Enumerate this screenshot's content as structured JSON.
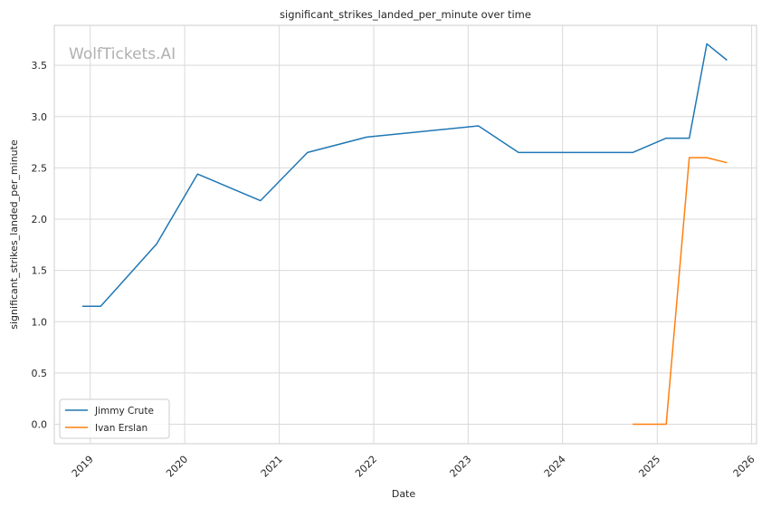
{
  "chart_data": {
    "type": "line",
    "title": "significant_strikes_landed_per_minute over time",
    "xlabel": "Date",
    "ylabel": "significant_strikes_landed_per_minute",
    "watermark": "WolfTickets.AI",
    "xlim": [
      "2018-08-15",
      "2026-01-20"
    ],
    "ylim": [
      -0.19,
      3.89
    ],
    "x_ticks": [
      "2019",
      "2020",
      "2021",
      "2022",
      "2023",
      "2024",
      "2025",
      "2026"
    ],
    "y_ticks": [
      0.0,
      0.5,
      1.0,
      1.5,
      2.0,
      2.5,
      3.0,
      3.5
    ],
    "y_tick_labels": [
      "0.0",
      "0.5",
      "1.0",
      "1.5",
      "2.0",
      "2.5",
      "3.0",
      "3.5"
    ],
    "grid": true,
    "legend_position": "bottom-left",
    "series": [
      {
        "name": "Jimmy Crute",
        "color": "#1f77b4",
        "points": [
          {
            "x": "2018-12-01",
            "y": 1.15
          },
          {
            "x": "2019-02-10",
            "y": 1.15
          },
          {
            "x": "2019-09-15",
            "y": 1.76
          },
          {
            "x": "2020-02-20",
            "y": 2.44
          },
          {
            "x": "2020-10-20",
            "y": 2.18
          },
          {
            "x": "2021-04-20",
            "y": 2.65
          },
          {
            "x": "2021-12-05",
            "y": 2.8
          },
          {
            "x": "2023-02-10",
            "y": 2.91
          },
          {
            "x": "2023-07-15",
            "y": 2.65
          },
          {
            "x": "2024-09-28",
            "y": 2.65
          },
          {
            "x": "2025-02-05",
            "y": 2.79
          },
          {
            "x": "2025-05-05",
            "y": 2.79
          },
          {
            "x": "2025-07-12",
            "y": 3.71
          },
          {
            "x": "2025-09-28",
            "y": 3.55
          }
        ]
      },
      {
        "name": "Ivan Erslan",
        "color": "#ff7f0e",
        "points": [
          {
            "x": "2024-09-28",
            "y": 0.0
          },
          {
            "x": "2025-02-05",
            "y": 0.0
          },
          {
            "x": "2025-05-05",
            "y": 2.6
          },
          {
            "x": "2025-07-12",
            "y": 2.6
          },
          {
            "x": "2025-09-28",
            "y": 2.55
          }
        ]
      }
    ]
  }
}
